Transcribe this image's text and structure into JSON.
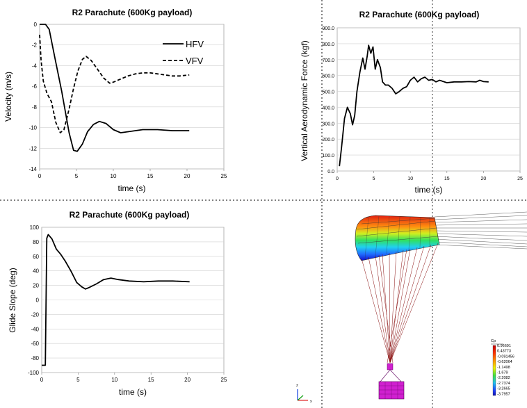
{
  "chart_data": [
    {
      "type": "line",
      "title": "R2 Parachute (600Kg payload)",
      "xlabel": "time (s)",
      "ylabel": "Velocity (m/s)",
      "xlim": [
        0,
        25
      ],
      "ylim": [
        -14,
        0
      ],
      "xticks": [
        "0",
        "5",
        "10",
        "15",
        "20",
        "25"
      ],
      "yticks": [
        "0",
        "-2",
        "-4",
        "-6",
        "-8",
        "-10",
        "-12",
        "-14"
      ],
      "legend": [
        "HFV",
        "VFV"
      ],
      "series": [
        {
          "name": "HFV",
          "style": "solid",
          "x": [
            0,
            0.8,
            1.3,
            2,
            3,
            4,
            4.6,
            5.1,
            5.8,
            6.5,
            7.3,
            8.1,
            9,
            10,
            11,
            12,
            14,
            16,
            18,
            20.3
          ],
          "y": [
            0,
            0,
            -0.5,
            -3,
            -6.5,
            -10.5,
            -12.2,
            -12.3,
            -11.6,
            -10.4,
            -9.7,
            -9.4,
            -9.6,
            -10.2,
            -10.5,
            -10.4,
            -10.2,
            -10.2,
            -10.3,
            -10.3
          ]
        },
        {
          "name": "VFV",
          "style": "dashed",
          "x": [
            0,
            0.2,
            0.5,
            1,
            1.6,
            2.2,
            2.8,
            3.3,
            4,
            4.6,
            5.2,
            5.8,
            6.3,
            7,
            7.8,
            8.7,
            9.5,
            10,
            11,
            12,
            13,
            14,
            15,
            16,
            17,
            18,
            19,
            20.3
          ],
          "y": [
            -1,
            -3.5,
            -5.5,
            -6.7,
            -7.5,
            -9.5,
            -10.5,
            -10.2,
            -8.2,
            -6.2,
            -4.5,
            -3.4,
            -3.1,
            -3.5,
            -4.3,
            -5.2,
            -5.7,
            -5.6,
            -5.3,
            -5.0,
            -4.8,
            -4.7,
            -4.7,
            -4.8,
            -4.9,
            -5.0,
            -5.0,
            -4.9
          ]
        }
      ]
    },
    {
      "type": "line",
      "title": "R2 Parachute (600Kg payload)",
      "xlabel": "time (s)",
      "ylabel": "Vertical Aerodynamic Force (kgf)",
      "xlim": [
        0,
        25
      ],
      "ylim": [
        0,
        900
      ],
      "xticks": [
        "0",
        "5",
        "10",
        "15",
        "20",
        "25"
      ],
      "yticks": [
        "0.0",
        "100.0",
        "200.0",
        "300.0",
        "400.0",
        "500.0",
        "600.0",
        "700.0",
        "800.0",
        "900.0"
      ],
      "series": [
        {
          "name": "Force",
          "style": "solid",
          "x": [
            0.3,
            0.6,
            1,
            1.4,
            1.8,
            2.1,
            2.4,
            2.7,
            3.1,
            3.5,
            3.8,
            4.1,
            4.3,
            4.6,
            4.9,
            5.2,
            5.5,
            5.9,
            6.2,
            6.6,
            7,
            7.5,
            8,
            8.5,
            9,
            9.5,
            10,
            10.5,
            11,
            11.5,
            12,
            12.5,
            13,
            13.5,
            14,
            15,
            16,
            17,
            18,
            19,
            19.5,
            20,
            20.7
          ],
          "y": [
            30,
            150,
            330,
            400,
            360,
            290,
            350,
            500,
            620,
            710,
            640,
            720,
            790,
            740,
            780,
            640,
            700,
            650,
            560,
            540,
            540,
            520,
            485,
            500,
            520,
            530,
            570,
            590,
            560,
            580,
            590,
            570,
            575,
            560,
            570,
            555,
            560,
            560,
            562,
            560,
            570,
            562,
            560
          ]
        }
      ]
    },
    {
      "type": "line",
      "title": "R2 Parachute (600Kg payload)",
      "xlabel": "time (s)",
      "ylabel": "Glide Slope (deg)",
      "xlim": [
        0,
        25
      ],
      "ylim": [
        -100,
        100
      ],
      "xticks": [
        "0",
        "5",
        "10",
        "15",
        "20",
        "25"
      ],
      "yticks": [
        "100",
        "80",
        "60",
        "40",
        "20",
        "0",
        "-20",
        "-40",
        "-60",
        "-80",
        "-100"
      ],
      "series": [
        {
          "name": "Glide Slope",
          "style": "solid",
          "x": [
            0,
            0.5,
            0.7,
            0.9,
            1.4,
            2,
            2.6,
            3.2,
            4,
            4.8,
            5.5,
            6,
            6.5,
            7.5,
            8.5,
            9.5,
            10.5,
            12,
            14,
            16,
            18,
            20.3
          ],
          "y": [
            -90,
            -90,
            85,
            90,
            84,
            70,
            63,
            54,
            40,
            24,
            18,
            15,
            17,
            22,
            28,
            30,
            28,
            26,
            25,
            26,
            26,
            25
          ]
        }
      ]
    }
  ],
  "colorbar": {
    "title": "Cp",
    "labels": [
      "0.96691",
      "0.43773",
      "-0.091456",
      "-0.62064",
      "-1.1498",
      "-1.679",
      "-2.2082",
      "-2.7374",
      "-3.2665",
      "-3.7957"
    ]
  },
  "axes_triad": {
    "z_label": "z",
    "x_label": "x"
  }
}
